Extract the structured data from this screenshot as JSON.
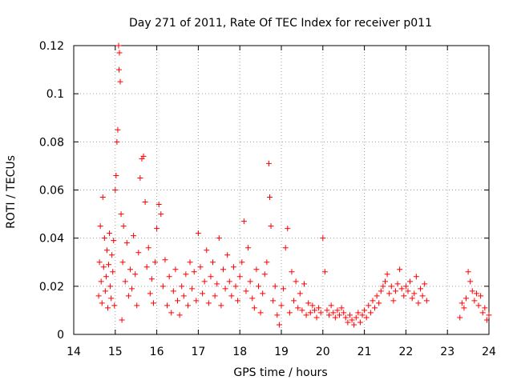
{
  "chart_data": {
    "type": "scatter",
    "title": "Day 271 of 2011, Rate Of TEC Index for receiver p011",
    "xlabel": "GPS time / hours",
    "ylabel": "ROTI / TECUs",
    "xlim": [
      14,
      24
    ],
    "ylim": [
      0,
      0.12
    ],
    "xticks": [
      "14",
      "15",
      "16",
      "17",
      "18",
      "19",
      "20",
      "21",
      "22",
      "23",
      "24"
    ],
    "yticks": [
      "0",
      "0.02",
      "0.04",
      "0.06",
      "0.08",
      "0.1",
      "0.12"
    ],
    "grid": true,
    "marker": "+",
    "marker_color": "#ff0000",
    "series": [
      {
        "points": [
          [
            14.6,
            0.016
          ],
          [
            14.62,
            0.03
          ],
          [
            14.64,
            0.045
          ],
          [
            14.66,
            0.022
          ],
          [
            14.68,
            0.013
          ],
          [
            14.7,
            0.057
          ],
          [
            14.72,
            0.028
          ],
          [
            14.74,
            0.04
          ],
          [
            14.76,
            0.018
          ],
          [
            14.78,
            0.024
          ],
          [
            14.8,
            0.035
          ],
          [
            14.82,
            0.011
          ],
          [
            14.84,
            0.029
          ],
          [
            14.86,
            0.042
          ],
          [
            14.88,
            0.02
          ],
          [
            14.9,
            0.015
          ],
          [
            14.92,
            0.033
          ],
          [
            14.94,
            0.026
          ],
          [
            14.96,
            0.039
          ],
          [
            14.98,
            0.012
          ],
          [
            15.0,
            0.06
          ],
          [
            15.02,
            0.066
          ],
          [
            15.04,
            0.08
          ],
          [
            15.06,
            0.085
          ],
          [
            15.08,
            0.12
          ],
          [
            15.09,
            0.11
          ],
          [
            15.1,
            0.117
          ],
          [
            15.12,
            0.105
          ],
          [
            15.14,
            0.05
          ],
          [
            15.16,
            0.006
          ],
          [
            15.18,
            0.03
          ],
          [
            15.2,
            0.045
          ],
          [
            15.24,
            0.022
          ],
          [
            15.28,
            0.038
          ],
          [
            15.32,
            0.016
          ],
          [
            15.36,
            0.027
          ],
          [
            15.4,
            0.019
          ],
          [
            15.44,
            0.041
          ],
          [
            15.48,
            0.025
          ],
          [
            15.52,
            0.012
          ],
          [
            15.56,
            0.034
          ],
          [
            15.6,
            0.065
          ],
          [
            15.64,
            0.073
          ],
          [
            15.68,
            0.074
          ],
          [
            15.72,
            0.055
          ],
          [
            15.76,
            0.028
          ],
          [
            15.8,
            0.036
          ],
          [
            15.84,
            0.017
          ],
          [
            15.88,
            0.023
          ],
          [
            15.92,
            0.013
          ],
          [
            15.96,
            0.03
          ],
          [
            16.0,
            0.044
          ],
          [
            16.05,
            0.054
          ],
          [
            16.1,
            0.05
          ],
          [
            16.15,
            0.02
          ],
          [
            16.2,
            0.031
          ],
          [
            16.25,
            0.012
          ],
          [
            16.3,
            0.024
          ],
          [
            16.35,
            0.009
          ],
          [
            16.4,
            0.018
          ],
          [
            16.45,
            0.027
          ],
          [
            16.5,
            0.014
          ],
          [
            16.55,
            0.008
          ],
          [
            16.6,
            0.02
          ],
          [
            16.65,
            0.016
          ],
          [
            16.7,
            0.025
          ],
          [
            16.75,
            0.012
          ],
          [
            16.8,
            0.03
          ],
          [
            16.85,
            0.019
          ],
          [
            16.9,
            0.026
          ],
          [
            16.95,
            0.014
          ],
          [
            17.0,
            0.042
          ],
          [
            17.05,
            0.028
          ],
          [
            17.1,
            0.017
          ],
          [
            17.15,
            0.022
          ],
          [
            17.2,
            0.035
          ],
          [
            17.25,
            0.013
          ],
          [
            17.3,
            0.024
          ],
          [
            17.35,
            0.03
          ],
          [
            17.4,
            0.016
          ],
          [
            17.45,
            0.021
          ],
          [
            17.5,
            0.04
          ],
          [
            17.55,
            0.012
          ],
          [
            17.6,
            0.027
          ],
          [
            17.65,
            0.019
          ],
          [
            17.7,
            0.033
          ],
          [
            17.75,
            0.022
          ],
          [
            17.8,
            0.016
          ],
          [
            17.85,
            0.028
          ],
          [
            17.9,
            0.02
          ],
          [
            17.95,
            0.014
          ],
          [
            18.0,
            0.024
          ],
          [
            18.05,
            0.03
          ],
          [
            18.1,
            0.047
          ],
          [
            18.15,
            0.018
          ],
          [
            18.2,
            0.036
          ],
          [
            18.25,
            0.022
          ],
          [
            18.3,
            0.015
          ],
          [
            18.35,
            0.011
          ],
          [
            18.4,
            0.027
          ],
          [
            18.45,
            0.02
          ],
          [
            18.5,
            0.009
          ],
          [
            18.55,
            0.017
          ],
          [
            18.6,
            0.025
          ],
          [
            18.65,
            0.03
          ],
          [
            18.7,
            0.071
          ],
          [
            18.72,
            0.057
          ],
          [
            18.75,
            0.045
          ],
          [
            18.8,
            0.014
          ],
          [
            18.85,
            0.02
          ],
          [
            18.9,
            0.008
          ],
          [
            18.95,
            0.004
          ],
          [
            19.0,
            0.012
          ],
          [
            19.05,
            0.019
          ],
          [
            19.1,
            0.036
          ],
          [
            19.15,
            0.044
          ],
          [
            19.2,
            0.009
          ],
          [
            19.25,
            0.026
          ],
          [
            19.3,
            0.014
          ],
          [
            19.35,
            0.022
          ],
          [
            19.4,
            0.011
          ],
          [
            19.45,
            0.017
          ],
          [
            19.5,
            0.01
          ],
          [
            19.55,
            0.021
          ],
          [
            19.6,
            0.008
          ],
          [
            19.65,
            0.013
          ],
          [
            19.7,
            0.009
          ],
          [
            19.75,
            0.012
          ],
          [
            19.8,
            0.01
          ],
          [
            19.85,
            0.007
          ],
          [
            19.9,
            0.011
          ],
          [
            19.95,
            0.009
          ],
          [
            20.0,
            0.04
          ],
          [
            20.05,
            0.026
          ],
          [
            20.1,
            0.01
          ],
          [
            20.15,
            0.008
          ],
          [
            20.2,
            0.012
          ],
          [
            20.25,
            0.009
          ],
          [
            20.3,
            0.007
          ],
          [
            20.35,
            0.01
          ],
          [
            20.4,
            0.008
          ],
          [
            20.45,
            0.011
          ],
          [
            20.5,
            0.009
          ],
          [
            20.55,
            0.007
          ],
          [
            20.6,
            0.005
          ],
          [
            20.65,
            0.008
          ],
          [
            20.7,
            0.006
          ],
          [
            20.75,
            0.004
          ],
          [
            20.8,
            0.007
          ],
          [
            20.85,
            0.009
          ],
          [
            20.9,
            0.005
          ],
          [
            20.95,
            0.008
          ],
          [
            21.0,
            0.01
          ],
          [
            21.05,
            0.007
          ],
          [
            21.1,
            0.012
          ],
          [
            21.15,
            0.009
          ],
          [
            21.2,
            0.014
          ],
          [
            21.25,
            0.011
          ],
          [
            21.3,
            0.016
          ],
          [
            21.35,
            0.013
          ],
          [
            21.4,
            0.018
          ],
          [
            21.45,
            0.02
          ],
          [
            21.5,
            0.022
          ],
          [
            21.55,
            0.025
          ],
          [
            21.6,
            0.017
          ],
          [
            21.65,
            0.02
          ],
          [
            21.7,
            0.014
          ],
          [
            21.75,
            0.018
          ],
          [
            21.8,
            0.021
          ],
          [
            21.85,
            0.027
          ],
          [
            21.9,
            0.019
          ],
          [
            21.95,
            0.016
          ],
          [
            22.0,
            0.02
          ],
          [
            22.05,
            0.018
          ],
          [
            22.1,
            0.022
          ],
          [
            22.15,
            0.015
          ],
          [
            22.2,
            0.017
          ],
          [
            22.25,
            0.024
          ],
          [
            22.3,
            0.013
          ],
          [
            22.35,
            0.019
          ],
          [
            22.4,
            0.016
          ],
          [
            22.45,
            0.021
          ],
          [
            22.5,
            0.014
          ],
          [
            23.3,
            0.007
          ],
          [
            23.35,
            0.013
          ],
          [
            23.4,
            0.011
          ],
          [
            23.45,
            0.015
          ],
          [
            23.5,
            0.026
          ],
          [
            23.55,
            0.022
          ],
          [
            23.6,
            0.018
          ],
          [
            23.65,
            0.014
          ],
          [
            23.7,
            0.017
          ],
          [
            23.75,
            0.012
          ],
          [
            23.8,
            0.016
          ],
          [
            23.85,
            0.009
          ],
          [
            23.9,
            0.011
          ],
          [
            23.95,
            0.006
          ],
          [
            24.0,
            0.008
          ]
        ]
      }
    ]
  }
}
